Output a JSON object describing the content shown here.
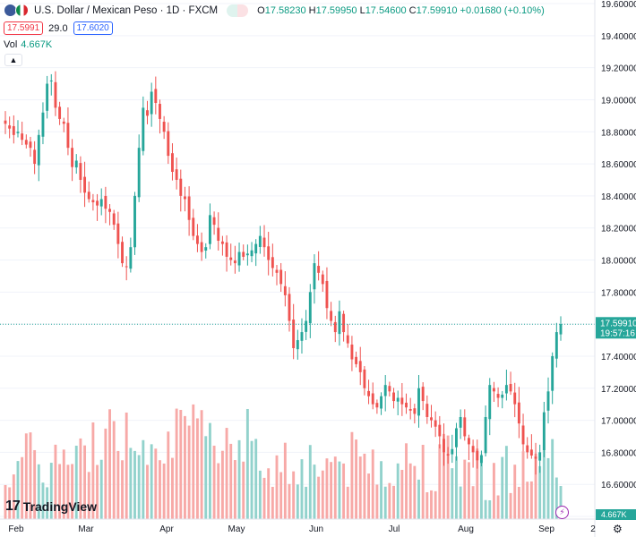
{
  "header": {
    "title": "U.S. Dollar / Mexican Peso · 1D · FXCM",
    "ohlc": {
      "o_label": "O",
      "o": "17.58230",
      "h_label": "H",
      "h": "17.59950",
      "l_label": "L",
      "l": "17.54600",
      "c_label": "C",
      "c": "17.59910",
      "change": "+0.01680 (+0.10%)"
    },
    "sell_price": "17.5991",
    "spread": "29.0",
    "buy_price": "17.6020",
    "vol_label": "Vol",
    "vol_value": "4.667K",
    "collapse_icon": "chevron-up"
  },
  "branding": {
    "logo_text": "TradingView",
    "logo_mark": "17"
  },
  "colors": {
    "up": "#26a69a",
    "down": "#ef5350",
    "vol_up": "#92d2cc",
    "vol_down": "#f7a9a7",
    "last_price_bg": "#26a69a",
    "grid": "#f0f3fa"
  },
  "chart_data": {
    "type": "candlestick",
    "symbol": "USDMXN",
    "interval": "1D",
    "x_labels": [
      "Feb",
      "Mar",
      "Apr",
      "May",
      "Jun",
      "Jul",
      "Aug",
      "Sep",
      "2"
    ],
    "y_ticks": [
      "19.60000",
      "19.40000",
      "19.20000",
      "19.00000",
      "18.80000",
      "18.60000",
      "18.40000",
      "18.20000",
      "18.00000",
      "17.80000",
      "17.60000",
      "17.40000",
      "17.20000",
      "17.00000",
      "16.80000",
      "16.60000",
      "16.40000"
    ],
    "ylim": [
      16.4,
      19.6
    ],
    "last_price": "17.59910",
    "countdown": "19:57:16",
    "volume_label": "4.667K",
    "close_series": [
      18.85,
      18.82,
      18.78,
      18.8,
      18.75,
      18.72,
      18.7,
      18.6,
      18.78,
      18.92,
      19.1,
      19.12,
      18.95,
      18.88,
      18.85,
      18.7,
      18.58,
      18.62,
      18.5,
      18.42,
      18.38,
      18.36,
      18.34,
      18.38,
      18.32,
      18.3,
      18.22,
      18.1,
      17.98,
      17.96,
      18.08,
      18.4,
      18.7,
      18.95,
      18.9,
      19.05,
      18.98,
      18.88,
      18.8,
      18.65,
      18.55,
      18.5,
      18.4,
      18.38,
      18.25,
      18.15,
      18.1,
      18.05,
      18.08,
      18.28,
      18.22,
      18.12,
      18.1,
      18.02,
      18.0,
      17.98,
      18.05,
      18.02,
      18.04,
      18.06,
      18.1,
      18.15,
      18.08,
      18.0,
      17.95,
      17.92,
      17.85,
      17.78,
      17.62,
      17.45,
      17.5,
      17.55,
      17.62,
      17.8,
      17.98,
      17.92,
      17.85,
      17.7,
      17.62,
      17.55,
      17.68,
      17.55,
      17.48,
      17.38,
      17.35,
      17.3,
      17.2,
      17.15,
      17.1,
      17.08,
      17.15,
      17.22,
      17.18,
      17.12,
      17.14,
      17.1,
      17.08,
      17.06,
      17.04,
      17.2,
      17.12,
      17.02,
      17.0,
      16.96,
      16.9,
      16.8,
      16.78,
      16.82,
      16.95,
      17.02,
      16.9,
      16.85,
      16.8,
      16.75,
      16.78,
      17.02,
      17.22,
      17.18,
      17.14,
      17.16,
      17.22,
      17.18,
      17.1,
      16.98,
      16.85,
      16.8,
      16.78,
      16.76,
      16.8,
      17.05,
      17.18,
      17.4,
      17.55,
      17.6
    ]
  }
}
